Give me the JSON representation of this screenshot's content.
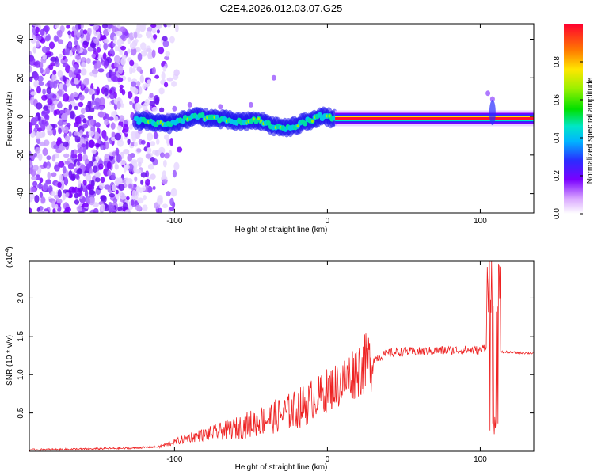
{
  "title": "C2E4.2026.012.03.07.G25",
  "chart_data": [
    {
      "type": "heatmap",
      "title": "C2E4.2026.012.03.07.G25",
      "xlabel": "Height of straight line (km)",
      "ylabel": "Frequency (Hz)",
      "xlim": [
        -195,
        135
      ],
      "ylim": [
        -50,
        48
      ],
      "xticks": [
        -100,
        0,
        100
      ],
      "yticks": [
        -40,
        -20,
        0,
        20,
        40
      ],
      "description_points": {
        "noise_region_x": [
          -195,
          -110
        ],
        "ridge": [
          {
            "x": -125,
            "y": -2
          },
          {
            "x": -115,
            "y": -3
          },
          {
            "x": -105,
            "y": -4
          },
          {
            "x": -95,
            "y": -2
          },
          {
            "x": -85,
            "y": 0
          },
          {
            "x": -75,
            "y": -1
          },
          {
            "x": -65,
            "y": -2
          },
          {
            "x": -55,
            "y": -3
          },
          {
            "x": -45,
            "y": -2
          },
          {
            "x": -35,
            "y": -5
          },
          {
            "x": -25,
            "y": -6
          },
          {
            "x": -15,
            "y": -3
          },
          {
            "x": -5,
            "y": 0
          },
          {
            "x": 5,
            "y": -1
          },
          {
            "x": 50,
            "y": -1
          },
          {
            "x": 100,
            "y": -1
          },
          {
            "x": 110,
            "y": 1
          },
          {
            "x": 135,
            "y": 0
          }
        ]
      },
      "colorbar": {
        "label": "Normalized spectral amplitude",
        "range": [
          0,
          1
        ],
        "ticks": [
          "0.0",
          "0.2",
          "0.4",
          "0.6",
          "0.8"
        ],
        "tick_values": [
          0.0,
          0.2,
          0.4,
          0.6,
          0.8
        ]
      }
    },
    {
      "type": "line",
      "xlabel": "Height of straight line (km)",
      "ylabel": "SNR (10 * v/v)",
      "scale_label": "(x10",
      "scale_exp": "4",
      "scale_close": ")",
      "xlim": [
        -195,
        135
      ],
      "ylim": [
        0.0,
        2.48
      ],
      "xticks": [
        -100,
        0,
        100
      ],
      "yticks": [
        "0.5",
        "1.0",
        "1.5",
        "2.0"
      ],
      "ytick_values": [
        0.5,
        1.0,
        1.5,
        2.0
      ],
      "series": [
        {
          "name": "SNR",
          "color": "#ee2222",
          "points": [
            {
              "x": -195,
              "y": 0.02
            },
            {
              "x": -160,
              "y": 0.03
            },
            {
              "x": -130,
              "y": 0.04
            },
            {
              "x": -110,
              "y": 0.06
            },
            {
              "x": -100,
              "y": 0.12
            },
            {
              "x": -90,
              "y": 0.18
            },
            {
              "x": -80,
              "y": 0.22
            },
            {
              "x": -70,
              "y": 0.26
            },
            {
              "x": -60,
              "y": 0.3
            },
            {
              "x": -50,
              "y": 0.36
            },
            {
              "x": -40,
              "y": 0.42
            },
            {
              "x": -30,
              "y": 0.48
            },
            {
              "x": -20,
              "y": 0.55
            },
            {
              "x": -10,
              "y": 0.66
            },
            {
              "x": 0,
              "y": 0.8
            },
            {
              "x": 10,
              "y": 0.9
            },
            {
              "x": 20,
              "y": 1.08
            },
            {
              "x": 30,
              "y": 1.2
            },
            {
              "x": 40,
              "y": 1.28
            },
            {
              "x": 50,
              "y": 1.3
            },
            {
              "x": 60,
              "y": 1.3
            },
            {
              "x": 70,
              "y": 1.31
            },
            {
              "x": 80,
              "y": 1.32
            },
            {
              "x": 90,
              "y": 1.32
            },
            {
              "x": 100,
              "y": 1.32
            },
            {
              "x": 105,
              "y": 1.4
            },
            {
              "x": 108,
              "y": 0.15
            },
            {
              "x": 110,
              "y": 2.45
            },
            {
              "x": 112,
              "y": 1.3
            },
            {
              "x": 120,
              "y": 1.29
            },
            {
              "x": 135,
              "y": 1.28
            }
          ]
        }
      ]
    }
  ],
  "colors": {
    "line": "#ee2222",
    "axis": "#000000",
    "background": "#ffffff"
  }
}
